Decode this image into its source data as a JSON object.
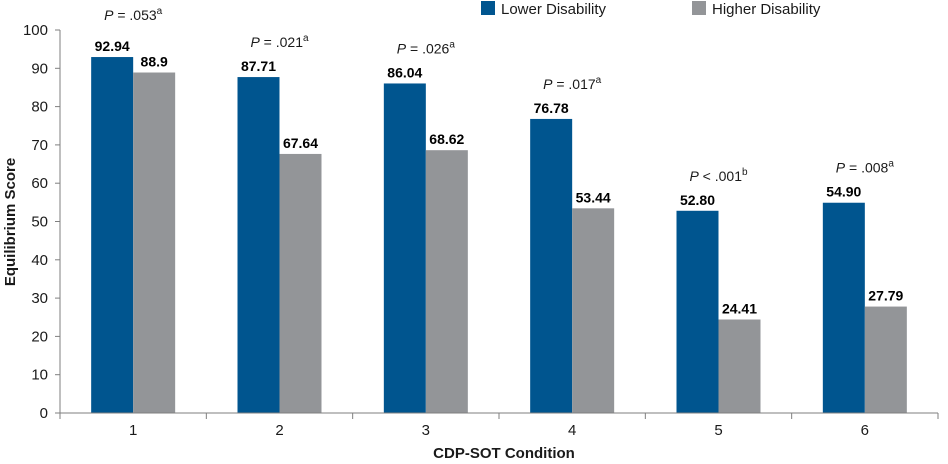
{
  "chart_data": {
    "type": "bar",
    "title": "",
    "xlabel": "CDP-SOT Condition",
    "ylabel": "Equilibrium Score",
    "ylim": [
      0,
      100
    ],
    "yticks": [
      0,
      10,
      20,
      30,
      40,
      50,
      60,
      70,
      80,
      90,
      100
    ],
    "grid": false,
    "legend_position": "top-right",
    "categories": [
      "1",
      "2",
      "3",
      "4",
      "5",
      "6"
    ],
    "series": [
      {
        "name": "Lower Disability",
        "color": "#00558f",
        "values": [
          92.94,
          87.71,
          86.04,
          76.78,
          52.8,
          54.9
        ],
        "labels": [
          "92.94",
          "87.71",
          "86.04",
          "76.78",
          "52.80",
          "54.90"
        ]
      },
      {
        "name": "Higher Disability",
        "color": "#939598",
        "values": [
          88.9,
          67.64,
          68.62,
          53.44,
          24.41,
          27.79
        ],
        "labels": [
          "88.9",
          "67.64",
          "68.62",
          "53.44",
          "24.41",
          "27.79"
        ]
      }
    ],
    "annotations": [
      {
        "prefix": "P",
        "text": " = .053",
        "sup": "a"
      },
      {
        "prefix": "P",
        "text": " = .021",
        "sup": "a"
      },
      {
        "prefix": "P",
        "text": " = .026",
        "sup": "a"
      },
      {
        "prefix": "P",
        "text": " = .017",
        "sup": "a"
      },
      {
        "prefix": "P",
        "text": " < .001",
        "sup": "b"
      },
      {
        "prefix": "P",
        "text": " = .008",
        "sup": "a"
      }
    ]
  }
}
